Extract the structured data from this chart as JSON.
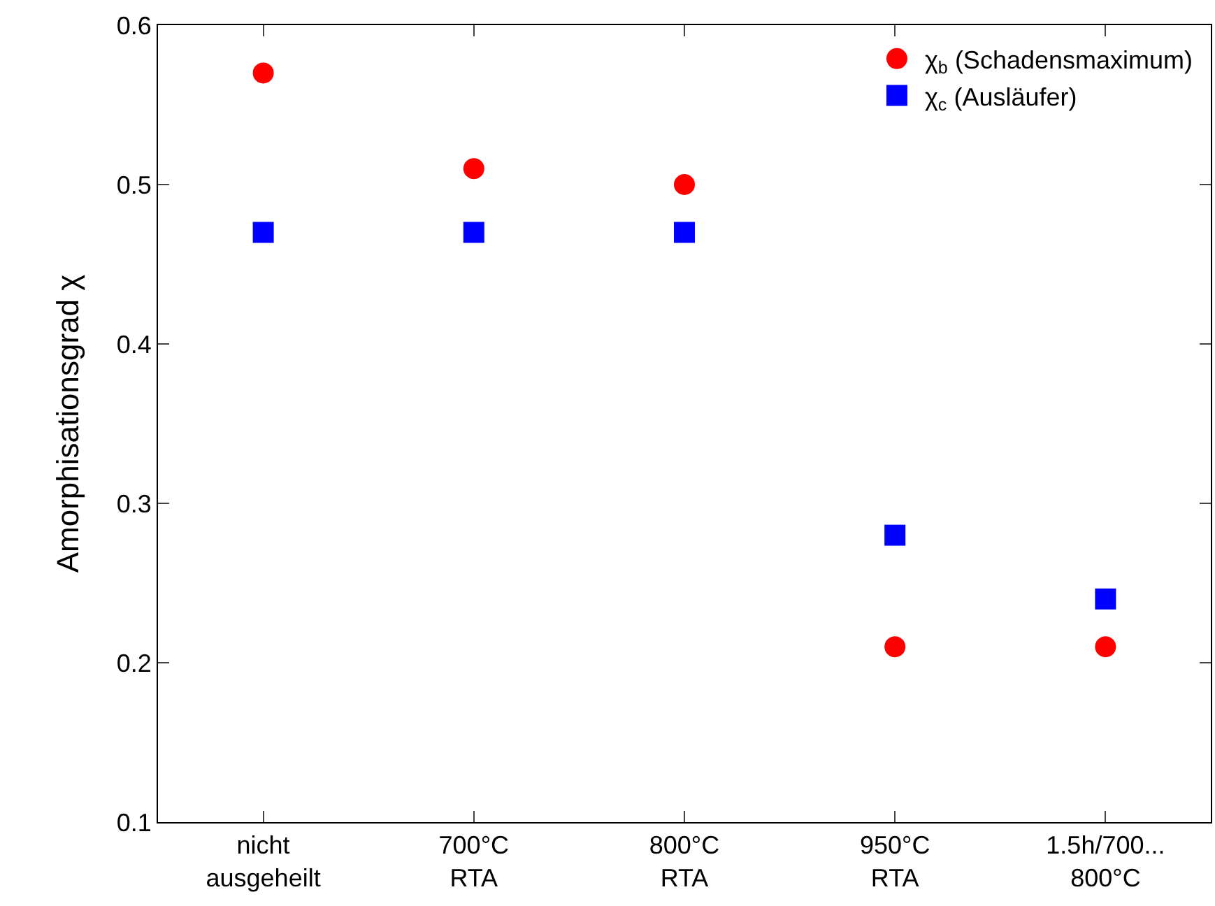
{
  "chart_data": {
    "type": "scatter",
    "ylabel": "Amorphisationsgrad χ",
    "categories": [
      "nicht\nausgeheilt",
      "700°C\nRTA",
      "800°C\nRTA",
      "950°C\nRTA",
      "1.5h/700...\n800°C"
    ],
    "series": [
      {
        "name": "χ$_{b}$ (Schadensmaximum)",
        "color": "#ff0000",
        "marker": "circle",
        "values": [
          0.57,
          0.51,
          0.5,
          0.21,
          0.21
        ]
      },
      {
        "name": "χ$_{c}$ (Ausläufer)",
        "color": "#0000ff",
        "marker": "square",
        "values": [
          0.47,
          0.47,
          0.47,
          0.28,
          0.24
        ]
      }
    ],
    "ylim": [
      0.1,
      0.6
    ],
    "yticks": [
      0.1,
      0.2,
      0.3,
      0.4,
      0.5,
      0.6
    ],
    "legend": "top right"
  }
}
